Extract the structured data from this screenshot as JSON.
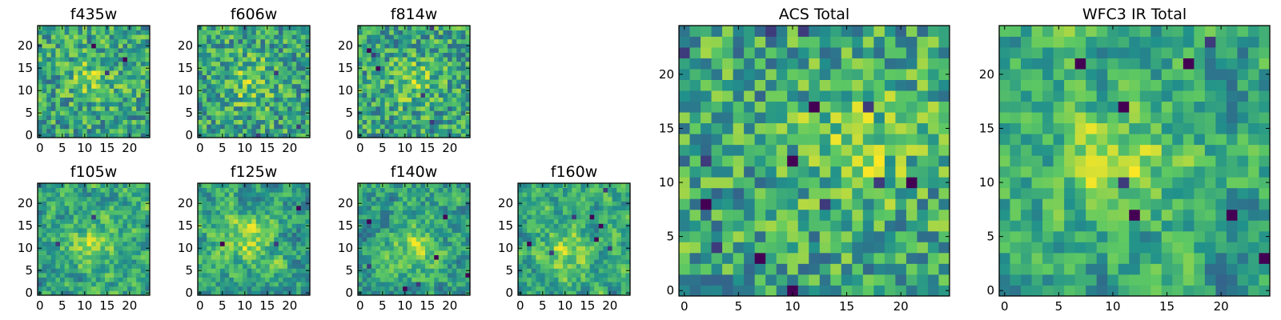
{
  "figure": {
    "background": "#ffffff",
    "colormap": "viridis",
    "colormap_stops": [
      "#440154",
      "#3b528b",
      "#21918c",
      "#5ec962",
      "#fde725"
    ]
  },
  "chart_data": [
    {
      "id": "f435w",
      "type": "heatmap",
      "title": "f435w",
      "grid": false,
      "size": 25,
      "xlim": [
        -0.5,
        24.5
      ],
      "ylim": [
        -0.5,
        24.5
      ],
      "xticks": [
        0,
        5,
        10,
        15,
        20
      ],
      "yticks": [
        0,
        5,
        10,
        15,
        20
      ],
      "seed": 11,
      "smooth": 0,
      "bright": [
        12,
        13
      ],
      "dark_count": 3
    },
    {
      "id": "f606w",
      "type": "heatmap",
      "title": "f606w",
      "grid": false,
      "size": 25,
      "xlim": [
        -0.5,
        24.5
      ],
      "ylim": [
        -0.5,
        24.5
      ],
      "xticks": [
        0,
        5,
        10,
        15,
        20
      ],
      "yticks": [
        0,
        5,
        10,
        15,
        20
      ],
      "seed": 23,
      "smooth": 0,
      "bright": [
        11,
        12
      ],
      "dark_count": 3
    },
    {
      "id": "f814w",
      "type": "heatmap",
      "title": "f814w",
      "grid": false,
      "size": 25,
      "xlim": [
        -0.5,
        24.5
      ],
      "ylim": [
        -0.5,
        24.5
      ],
      "xticks": [
        0,
        5,
        10,
        15,
        20
      ],
      "yticks": [
        0,
        5,
        10,
        15,
        20
      ],
      "seed": 37,
      "smooth": 0,
      "bright": [
        12,
        12
      ],
      "dark_count": 6
    },
    {
      "id": "f105w",
      "type": "heatmap",
      "title": "f105w",
      "grid": false,
      "size": 25,
      "xlim": [
        -0.5,
        24.5
      ],
      "ylim": [
        -0.5,
        24.5
      ],
      "xticks": [
        0,
        5,
        10,
        15,
        20
      ],
      "yticks": [
        0,
        5,
        10,
        15,
        20
      ],
      "seed": 41,
      "smooth": 1,
      "bright": [
        12,
        11
      ],
      "dark_count": 2
    },
    {
      "id": "f125w",
      "type": "heatmap",
      "title": "f125w",
      "grid": false,
      "size": 25,
      "xlim": [
        -0.5,
        24.5
      ],
      "ylim": [
        -0.5,
        24.5
      ],
      "xticks": [
        0,
        5,
        10,
        15,
        20
      ],
      "yticks": [
        0,
        5,
        10,
        15,
        20
      ],
      "seed": 53,
      "smooth": 1,
      "bright": [
        11,
        12
      ],
      "dark_count": 3
    },
    {
      "id": "f140w",
      "type": "heatmap",
      "title": "f140w",
      "grid": false,
      "size": 25,
      "xlim": [
        -0.5,
        24.5
      ],
      "ylim": [
        -0.5,
        24.5
      ],
      "xticks": [
        0,
        5,
        10,
        15,
        20
      ],
      "yticks": [
        0,
        5,
        10,
        15,
        20
      ],
      "seed": 67,
      "smooth": 1,
      "bright": [
        12,
        10
      ],
      "dark_count": 7
    },
    {
      "id": "f160w",
      "type": "heatmap",
      "title": "f160w",
      "grid": false,
      "size": 25,
      "xlim": [
        -0.5,
        24.5
      ],
      "ylim": [
        -0.5,
        24.5
      ],
      "xticks": [
        0,
        5,
        10,
        15,
        20
      ],
      "yticks": [
        0,
        5,
        10,
        15,
        20
      ],
      "seed": 79,
      "smooth": 1,
      "bright": [
        10,
        9
      ],
      "dark_count": 8
    },
    {
      "id": "acs-total",
      "type": "heatmap",
      "title": "ACS Total",
      "grid": false,
      "size": 25,
      "xlim": [
        -0.5,
        24.5
      ],
      "ylim": [
        -0.5,
        24.5
      ],
      "xticks": [
        0,
        5,
        10,
        15,
        20
      ],
      "yticks": [
        0,
        5,
        10,
        15,
        20
      ],
      "seed": 97,
      "smooth": 0,
      "bright": [
        16,
        14
      ],
      "dark_count": 14
    },
    {
      "id": "wfc3-ir-total",
      "type": "heatmap",
      "title": "WFC3 IR Total",
      "grid": false,
      "size": 25,
      "xlim": [
        -0.5,
        24.5
      ],
      "ylim": [
        -0.5,
        24.5
      ],
      "xticks": [
        0,
        5,
        10,
        15,
        20
      ],
      "yticks": [
        0,
        5,
        10,
        15,
        20
      ],
      "seed": 131,
      "smooth": 1,
      "bright": [
        11,
        12
      ],
      "dark_count": 8
    }
  ]
}
